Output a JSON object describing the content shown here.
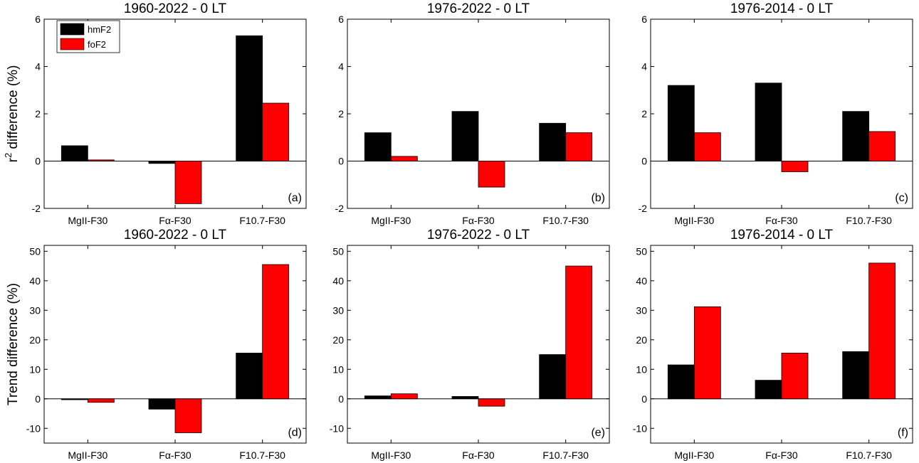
{
  "figure": {
    "ylabel_row1": "r",
    "ylabel_row1_sup": "2",
    "ylabel_row1_rest": " difference (%)",
    "ylabel_row2": "Trend difference (%)",
    "legend": [
      "hmF2",
      "foF2"
    ],
    "colors": {
      "hmF2": "#000000",
      "foF2": "#ff0000"
    }
  },
  "chart_data": [
    {
      "type": "bar",
      "title": "1960-2022 - 0 LT",
      "panel": "(a)",
      "categories": [
        "MgII-F30",
        "Fα-F30",
        "F10.7-F30"
      ],
      "series": [
        {
          "name": "hmF2",
          "values": [
            0.65,
            -0.1,
            5.3
          ]
        },
        {
          "name": "foF2",
          "values": [
            0.05,
            -1.8,
            2.45
          ]
        }
      ],
      "ylim": [
        -2,
        6
      ],
      "yticks": [
        -2,
        0,
        2,
        4,
        6
      ],
      "ylabel": "r2 difference (%)",
      "legend": "top-left"
    },
    {
      "type": "bar",
      "title": "1976-2022 - 0 LT",
      "panel": "(b)",
      "categories": [
        "MgII-F30",
        "Fα-F30",
        "F10.7-F30"
      ],
      "series": [
        {
          "name": "hmF2",
          "values": [
            1.2,
            2.1,
            1.6
          ]
        },
        {
          "name": "foF2",
          "values": [
            0.2,
            -1.1,
            1.2
          ]
        }
      ],
      "ylim": [
        -2,
        6
      ],
      "yticks": [
        -2,
        0,
        2,
        4,
        6
      ]
    },
    {
      "type": "bar",
      "title": "1976-2014 - 0 LT",
      "panel": "(c)",
      "categories": [
        "MgII-F30",
        "Fα-F30",
        "F10.7-F30"
      ],
      "series": [
        {
          "name": "hmF2",
          "values": [
            3.2,
            3.3,
            2.1
          ]
        },
        {
          "name": "foF2",
          "values": [
            1.2,
            -0.45,
            1.25
          ]
        }
      ],
      "ylim": [
        -2,
        6
      ],
      "yticks": [
        -2,
        0,
        2,
        4,
        6
      ]
    },
    {
      "type": "bar",
      "title": "1960-2022 - 0 LT",
      "panel": "(d)",
      "categories": [
        "MgII-F30",
        "Fα-F30",
        "F10.7-F30"
      ],
      "series": [
        {
          "name": "hmF2",
          "values": [
            -0.3,
            -3.5,
            15.5
          ]
        },
        {
          "name": "foF2",
          "values": [
            -1.2,
            -11.5,
            45.5
          ]
        }
      ],
      "ylim": [
        -15,
        52
      ],
      "yticks": [
        -10,
        0,
        10,
        20,
        30,
        40,
        50
      ],
      "ylabel": "Trend difference (%)"
    },
    {
      "type": "bar",
      "title": "1976-2022 - 0 LT",
      "panel": "(e)",
      "categories": [
        "MgII-F30",
        "Fα-F30",
        "F10.7-F30"
      ],
      "series": [
        {
          "name": "hmF2",
          "values": [
            1.0,
            0.8,
            15.0
          ]
        },
        {
          "name": "foF2",
          "values": [
            1.7,
            -2.5,
            45.0
          ]
        }
      ],
      "ylim": [
        -15,
        52
      ],
      "yticks": [
        -10,
        0,
        10,
        20,
        30,
        40,
        50
      ]
    },
    {
      "type": "bar",
      "title": "1976-2014 - 0 LT",
      "panel": "(f)",
      "categories": [
        "MgII-F30",
        "Fα-F30",
        "F10.7-F30"
      ],
      "series": [
        {
          "name": "hmF2",
          "values": [
            11.5,
            6.3,
            16.0
          ]
        },
        {
          "name": "foF2",
          "values": [
            31.2,
            15.5,
            46.0
          ]
        }
      ],
      "ylim": [
        -15,
        52
      ],
      "yticks": [
        -10,
        0,
        10,
        20,
        30,
        40,
        50
      ]
    }
  ]
}
